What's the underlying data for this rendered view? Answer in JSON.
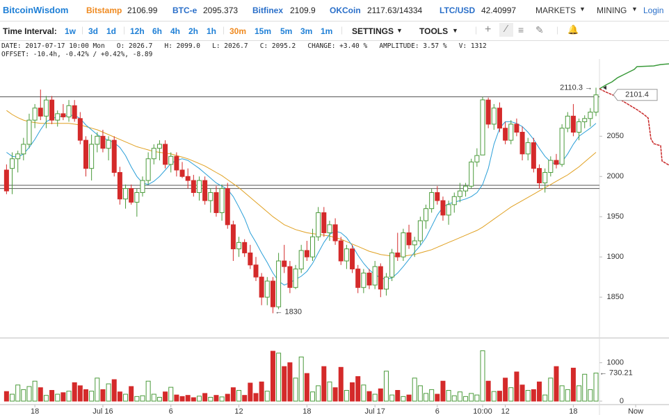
{
  "header": {
    "brand": "BitcoinWisdom",
    "tickers": [
      {
        "name": "Bitstamp",
        "value": "2106.99"
      },
      {
        "name": "BTC-e",
        "value": "2095.373"
      },
      {
        "name": "Bitfinex",
        "value": "2109.9"
      },
      {
        "name": "OKCoin",
        "value": "2117.63/14334"
      },
      {
        "name": "LTC/USD",
        "value": "42.40997"
      }
    ],
    "menus": [
      "MARKETS",
      "MINING"
    ],
    "login": "Login"
  },
  "toolbar": {
    "label": "Time Interval:",
    "intervals": [
      "1w",
      "3d",
      "1d",
      "12h",
      "6h",
      "4h",
      "2h",
      "1h",
      "30m",
      "15m",
      "5m",
      "3m",
      "1m"
    ],
    "active": "30m",
    "menus": [
      "SETTINGS",
      "TOOLS"
    ]
  },
  "info": [
    "DATE: 2017-07-17 10:00 Mon   O: 2026.7   H: 2099.0   L: 2026.7   C: 2095.2   CHANGE: +3.40 %   AMPLITUDE: 3.57 %   V: 1312",
    "OFFSET: -10.4h, -0.42% / +0.42%, -8.89"
  ],
  "chart_data": {
    "type": "candlestick",
    "up_color": "#4a9a3a",
    "down_color": "#d42a2a",
    "xlim": [
      -1.15,
      116.88
    ],
    "ylim": [
      1801,
      2146
    ],
    "yticks": [
      2050,
      2000,
      1950,
      1900,
      1850
    ],
    "vlim": [
      0,
      1500
    ],
    "vticks": [
      0,
      1000
    ],
    "xticks": [
      {
        "value": 5,
        "label": "18"
      },
      {
        "value": 17,
        "label": "Jul 16"
      },
      {
        "value": 29,
        "label": "6"
      },
      {
        "value": 41,
        "label": "12"
      },
      {
        "value": 53,
        "label": "18"
      },
      {
        "value": 65,
        "label": "Jul 17"
      },
      {
        "value": 76,
        "label": "6"
      },
      {
        "value": 84,
        "label": "10:00"
      },
      {
        "value": 88,
        "label": "12"
      },
      {
        "value": 100,
        "label": "18"
      },
      {
        "value": 111,
        "label": "Now"
      }
    ],
    "levels": [
      2099,
      1989,
      1985
    ],
    "level_color": "#555555",
    "candles": [
      [
        2008,
        2015,
        1978,
        1982
      ],
      [
        2010,
        2030,
        1978,
        2022
      ],
      [
        2022,
        2032,
        2005,
        2028
      ],
      [
        2028,
        2048,
        2020,
        2040
      ],
      [
        2040,
        2078,
        2035,
        2070
      ],
      [
        2070,
        2090,
        2060,
        2085
      ],
      [
        2085,
        2108,
        2070,
        2075
      ],
      [
        2075,
        2100,
        2060,
        2095
      ],
      [
        2095,
        2100,
        2065,
        2070
      ],
      [
        2070,
        2082,
        2062,
        2078
      ],
      [
        2078,
        2090,
        2070,
        2074
      ],
      [
        2074,
        2095,
        2068,
        2088
      ],
      [
        2088,
        2095,
        2068,
        2072
      ],
      [
        2072,
        2080,
        2040,
        2045
      ],
      [
        2045,
        2050,
        2000,
        2010
      ],
      [
        2010,
        2052,
        1995,
        2040
      ],
      [
        2040,
        2055,
        2030,
        2050
      ],
      [
        2050,
        2058,
        2030,
        2035
      ],
      [
        2035,
        2050,
        2020,
        2045
      ],
      [
        2045,
        2050,
        2000,
        2005
      ],
      [
        2005,
        2012,
        1965,
        1972
      ],
      [
        1972,
        1990,
        1960,
        1985
      ],
      [
        1985,
        1990,
        1965,
        1968
      ],
      [
        1968,
        1985,
        1950,
        1980
      ],
      [
        1980,
        2000,
        1975,
        1995
      ],
      [
        1995,
        2030,
        1990,
        2022
      ],
      [
        2022,
        2040,
        2015,
        2035
      ],
      [
        2035,
        2045,
        2020,
        2040
      ],
      [
        2040,
        2045,
        2010,
        2015
      ],
      [
        2015,
        2030,
        2005,
        2025
      ],
      [
        2025,
        2030,
        2000,
        2008
      ],
      [
        2008,
        2018,
        1998,
        2000
      ],
      [
        2000,
        2010,
        1985,
        1995
      ],
      [
        1995,
        2002,
        1975,
        1980
      ],
      [
        1980,
        2000,
        1970,
        1995
      ],
      [
        1995,
        2000,
        1965,
        1970
      ],
      [
        1970,
        1985,
        1955,
        1980
      ],
      [
        1980,
        1988,
        1950,
        1955
      ],
      [
        1955,
        1990,
        1945,
        1985
      ],
      [
        1985,
        1992,
        1935,
        1940
      ],
      [
        1940,
        1945,
        1895,
        1910
      ],
      [
        1910,
        1925,
        1900,
        1918
      ],
      [
        1918,
        1922,
        1900,
        1905
      ],
      [
        1905,
        1915,
        1885,
        1890
      ],
      [
        1890,
        1900,
        1870,
        1875
      ],
      [
        1875,
        1880,
        1840,
        1850
      ],
      [
        1850,
        1875,
        1840,
        1870
      ],
      [
        1870,
        1875,
        1830,
        1838
      ],
      [
        1838,
        1905,
        1835,
        1895
      ],
      [
        1895,
        1915,
        1880,
        1888
      ],
      [
        1888,
        1895,
        1855,
        1862
      ],
      [
        1862,
        1890,
        1860,
        1885
      ],
      [
        1885,
        1915,
        1880,
        1908
      ],
      [
        1908,
        1920,
        1895,
        1900
      ],
      [
        1900,
        1935,
        1895,
        1925
      ],
      [
        1925,
        1962,
        1920,
        1955
      ],
      [
        1955,
        1962,
        1925,
        1930
      ],
      [
        1930,
        1945,
        1920,
        1940
      ],
      [
        1940,
        1948,
        1915,
        1920
      ],
      [
        1920,
        1925,
        1890,
        1895
      ],
      [
        1895,
        1915,
        1885,
        1910
      ],
      [
        1910,
        1915,
        1880,
        1885
      ],
      [
        1885,
        1890,
        1855,
        1862
      ],
      [
        1862,
        1885,
        1855,
        1880
      ],
      [
        1880,
        1885,
        1860,
        1865
      ],
      [
        1865,
        1895,
        1860,
        1888
      ],
      [
        1888,
        1892,
        1850,
        1860
      ],
      [
        1860,
        1880,
        1852,
        1875
      ],
      [
        1875,
        1910,
        1870,
        1905
      ],
      [
        1905,
        1930,
        1895,
        1900
      ],
      [
        1900,
        1935,
        1895,
        1930
      ],
      [
        1930,
        1940,
        1910,
        1915
      ],
      [
        1915,
        1925,
        1900,
        1920
      ],
      [
        1920,
        1950,
        1915,
        1945
      ],
      [
        1945,
        1965,
        1935,
        1960
      ],
      [
        1960,
        1985,
        1955,
        1980
      ],
      [
        1980,
        1988,
        1965,
        1970
      ],
      [
        1970,
        1975,
        1945,
        1952
      ],
      [
        1952,
        1970,
        1940,
        1965
      ],
      [
        1965,
        1980,
        1955,
        1975
      ],
      [
        1975,
        1992,
        1968,
        1982
      ],
      [
        1982,
        1992,
        1975,
        1988
      ],
      [
        1988,
        2022,
        1985,
        2018
      ],
      [
        2018,
        2035,
        2012,
        2026
      ],
      [
        2026.7,
        2099,
        2026.7,
        2095.2
      ],
      [
        2095,
        2098,
        2060,
        2065
      ],
      [
        2065,
        2090,
        2058,
        2085
      ],
      [
        2085,
        2092,
        2055,
        2060
      ],
      [
        2060,
        2068,
        2040,
        2045
      ],
      [
        2045,
        2070,
        2040,
        2065
      ],
      [
        2065,
        2072,
        2050,
        2055
      ],
      [
        2055,
        2062,
        2020,
        2028
      ],
      [
        2028,
        2048,
        2020,
        2042
      ],
      [
        2042,
        2048,
        2005,
        2010
      ],
      [
        2010,
        2015,
        1985,
        1992
      ],
      [
        1992,
        2010,
        1980,
        2005
      ],
      [
        2005,
        2025,
        2000,
        2020
      ],
      [
        2020,
        2028,
        2010,
        2015
      ],
      [
        2015,
        2065,
        2012,
        2060
      ],
      [
        2060,
        2080,
        2055,
        2075
      ],
      [
        2075,
        2090,
        2050,
        2055
      ],
      [
        2055,
        2072,
        2045,
        2068
      ],
      [
        2068,
        2076,
        2060,
        2072
      ],
      [
        2072,
        2085,
        2062,
        2080
      ],
      [
        2080,
        2110.3,
        2075,
        2101.4
      ]
    ],
    "volume": [
      250,
      180,
      420,
      300,
      380,
      520,
      350,
      150,
      280,
      180,
      220,
      260,
      480,
      400,
      300,
      260,
      600,
      300,
      450,
      560,
      240,
      180,
      380,
      120,
      140,
      520,
      180,
      100,
      240,
      360,
      160,
      120,
      150,
      90,
      130,
      200,
      100,
      150,
      110,
      180,
      350,
      280,
      150,
      470,
      200,
      500,
      260,
      1300,
      1250,
      900,
      1000,
      600,
      1150,
      720,
      240,
      400,
      900,
      500,
      350,
      880,
      280,
      480,
      640,
      420,
      250,
      180,
      320,
      780,
      160,
      280,
      120,
      160,
      600,
      400,
      200,
      300,
      180,
      520,
      280,
      140,
      240,
      120,
      200,
      160,
      1312,
      520,
      250,
      260,
      600,
      350,
      760,
      420,
      280,
      300,
      500,
      160,
      600,
      900,
      400,
      300,
      860,
      400,
      700,
      300,
      730.21
    ],
    "ma_fast": {
      "color": "#2a9fd8",
      "values": [
        2030,
        2025,
        2024,
        2028,
        2036,
        2046,
        2058,
        2068,
        2072,
        2074,
        2075,
        2076,
        2076,
        2072,
        2064,
        2058,
        2052,
        2048,
        2045,
        2042,
        2036,
        2026,
        2012,
        2000,
        1992,
        1990,
        1994,
        2000,
        2008,
        2016,
        2020,
        2022,
        2020,
        2015,
        2010,
        2004,
        1998,
        1992,
        1988,
        1984,
        1975,
        1962,
        1948,
        1930,
        1918,
        1905,
        1893,
        1880,
        1870,
        1865,
        1868,
        1872,
        1876,
        1882,
        1892,
        1905,
        1918,
        1928,
        1932,
        1930,
        1924,
        1914,
        1902,
        1892,
        1884,
        1878,
        1874,
        1872,
        1874,
        1880,
        1888,
        1897,
        1906,
        1914,
        1924,
        1938,
        1952,
        1962,
        1966,
        1968,
        1970,
        1972,
        1975,
        1980,
        1990,
        2010,
        2040,
        2060,
        2068,
        2068,
        2066,
        2062,
        2055,
        2046,
        2035,
        2025,
        2018,
        2015,
        2018,
        2028,
        2040,
        2050,
        2055,
        2060,
        2066
      ]
    },
    "ma_slow": {
      "color": "#e0a020",
      "values": [
        2082,
        2077,
        2073,
        2070,
        2068,
        2067,
        2066,
        2066,
        2066,
        2066,
        2066,
        2066,
        2065,
        2064,
        2062,
        2060,
        2058,
        2055,
        2052,
        2049,
        2046,
        2043,
        2040,
        2037,
        2035,
        2033,
        2031,
        2030,
        2029,
        2028,
        2026,
        2024,
        2022,
        2019,
        2016,
        2013,
        2009,
        2005,
        2001,
        1996,
        1991,
        1986,
        1980,
        1974,
        1968,
        1962,
        1956,
        1950,
        1945,
        1940,
        1937,
        1934,
        1932,
        1930,
        1929,
        1928,
        1927,
        1926,
        1924,
        1922,
        1919,
        1916,
        1913,
        1910,
        1907,
        1905,
        1903,
        1902,
        1901,
        1901,
        1901,
        1902,
        1903,
        1905,
        1907,
        1909,
        1912,
        1915,
        1918,
        1921,
        1924,
        1927,
        1930,
        1933,
        1937,
        1942,
        1947,
        1952,
        1957,
        1962,
        1966,
        1970,
        1974,
        1978,
        1982,
        1986,
        1990,
        1994,
        1998,
        2002,
        2007,
        2012,
        2018,
        2024,
        2030
      ]
    },
    "annotations": [
      {
        "value": 2110.3,
        "label": "2110.3 →"
      },
      {
        "value": 1830,
        "label": "← 1830"
      }
    ],
    "last_price": 2101.4,
    "last_volume": {
      "value": 730.21,
      "label": "← 730.21"
    }
  }
}
